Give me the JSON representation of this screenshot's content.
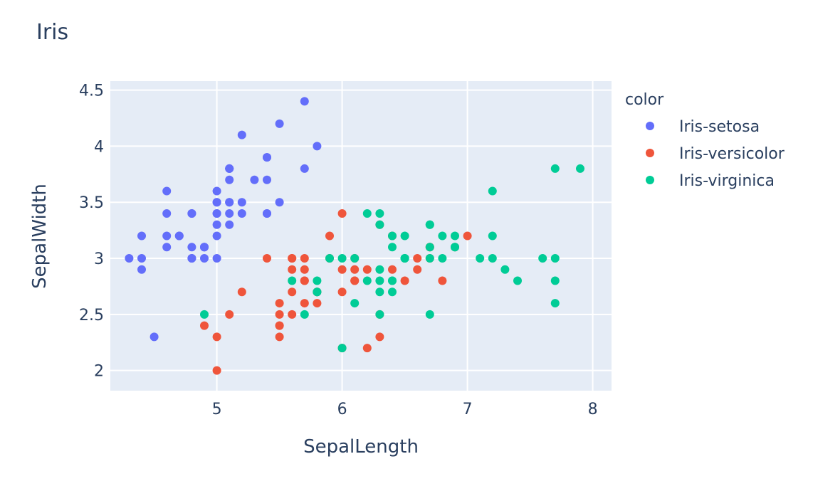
{
  "chart_data": {
    "type": "scatter",
    "title": "Iris",
    "xlabel": "SepalLength",
    "ylabel": "SepalWidth",
    "xlim": [
      4.15,
      8.15
    ],
    "ylim": [
      1.82,
      4.58
    ],
    "xticks": [
      5,
      6,
      7,
      8
    ],
    "yticks": [
      2,
      2.5,
      3,
      3.5,
      4,
      4.5
    ],
    "grid": true,
    "legend_title": "color",
    "legend_position": "right",
    "series": [
      {
        "name": "Iris-setosa",
        "color": "#636efa",
        "points": [
          [
            5.1,
            3.5
          ],
          [
            4.9,
            3.0
          ],
          [
            4.7,
            3.2
          ],
          [
            4.6,
            3.1
          ],
          [
            5.0,
            3.6
          ],
          [
            5.4,
            3.9
          ],
          [
            4.6,
            3.4
          ],
          [
            5.0,
            3.4
          ],
          [
            4.4,
            2.9
          ],
          [
            4.9,
            3.1
          ],
          [
            5.4,
            3.7
          ],
          [
            4.8,
            3.4
          ],
          [
            4.8,
            3.0
          ],
          [
            4.3,
            3.0
          ],
          [
            5.8,
            4.0
          ],
          [
            5.7,
            4.4
          ],
          [
            5.4,
            3.9
          ],
          [
            5.1,
            3.5
          ],
          [
            5.7,
            3.8
          ],
          [
            5.1,
            3.8
          ],
          [
            5.4,
            3.4
          ],
          [
            5.1,
            3.7
          ],
          [
            4.6,
            3.6
          ],
          [
            5.1,
            3.3
          ],
          [
            4.8,
            3.4
          ],
          [
            5.0,
            3.0
          ],
          [
            5.0,
            3.4
          ],
          [
            5.2,
            3.5
          ],
          [
            5.2,
            3.4
          ],
          [
            4.7,
            3.2
          ],
          [
            4.8,
            3.1
          ],
          [
            5.4,
            3.4
          ],
          [
            5.2,
            4.1
          ],
          [
            5.5,
            4.2
          ],
          [
            4.9,
            3.1
          ],
          [
            5.0,
            3.2
          ],
          [
            5.5,
            3.5
          ],
          [
            4.9,
            3.1
          ],
          [
            4.4,
            3.0
          ],
          [
            5.1,
            3.4
          ],
          [
            5.0,
            3.5
          ],
          [
            4.5,
            2.3
          ],
          [
            4.4,
            3.2
          ],
          [
            5.0,
            3.5
          ],
          [
            5.1,
            3.8
          ],
          [
            4.8,
            3.0
          ],
          [
            5.1,
            3.8
          ],
          [
            4.6,
            3.2
          ],
          [
            5.3,
            3.7
          ],
          [
            5.0,
            3.3
          ]
        ]
      },
      {
        "name": "Iris-versicolor",
        "color": "#ef553b",
        "points": [
          [
            7.0,
            3.2
          ],
          [
            6.4,
            3.2
          ],
          [
            6.9,
            3.1
          ],
          [
            5.5,
            2.3
          ],
          [
            6.5,
            2.8
          ],
          [
            5.7,
            2.8
          ],
          [
            6.3,
            3.3
          ],
          [
            4.9,
            2.4
          ],
          [
            6.6,
            2.9
          ],
          [
            5.2,
            2.7
          ],
          [
            5.0,
            2.0
          ],
          [
            5.9,
            3.0
          ],
          [
            6.0,
            2.2
          ],
          [
            6.1,
            2.9
          ],
          [
            5.6,
            2.9
          ],
          [
            6.7,
            3.1
          ],
          [
            5.6,
            3.0
          ],
          [
            5.8,
            2.7
          ],
          [
            6.2,
            2.2
          ],
          [
            5.6,
            2.5
          ],
          [
            5.9,
            3.2
          ],
          [
            6.1,
            2.8
          ],
          [
            6.3,
            2.5
          ],
          [
            6.1,
            2.8
          ],
          [
            6.4,
            2.9
          ],
          [
            6.6,
            3.0
          ],
          [
            6.8,
            2.8
          ],
          [
            6.7,
            3.0
          ],
          [
            6.0,
            2.9
          ],
          [
            5.7,
            2.6
          ],
          [
            5.5,
            2.4
          ],
          [
            5.5,
            2.4
          ],
          [
            5.8,
            2.7
          ],
          [
            6.0,
            2.7
          ],
          [
            5.4,
            3.0
          ],
          [
            6.0,
            3.4
          ],
          [
            6.7,
            3.1
          ],
          [
            6.3,
            2.3
          ],
          [
            5.6,
            3.0
          ],
          [
            5.5,
            2.5
          ],
          [
            5.5,
            2.6
          ],
          [
            6.1,
            3.0
          ],
          [
            5.8,
            2.6
          ],
          [
            5.0,
            2.3
          ],
          [
            5.6,
            2.7
          ],
          [
            5.7,
            3.0
          ],
          [
            5.7,
            2.9
          ],
          [
            6.2,
            2.9
          ],
          [
            5.1,
            2.5
          ],
          [
            5.7,
            2.8
          ]
        ]
      },
      {
        "name": "Iris-virginica",
        "color": "#00cc96",
        "points": [
          [
            6.3,
            3.3
          ],
          [
            5.8,
            2.7
          ],
          [
            7.1,
            3.0
          ],
          [
            6.3,
            2.9
          ],
          [
            6.5,
            3.0
          ],
          [
            7.6,
            3.0
          ],
          [
            4.9,
            2.5
          ],
          [
            7.3,
            2.9
          ],
          [
            6.7,
            2.5
          ],
          [
            7.2,
            3.6
          ],
          [
            6.5,
            3.2
          ],
          [
            6.4,
            2.7
          ],
          [
            6.8,
            3.0
          ],
          [
            5.7,
            2.5
          ],
          [
            5.8,
            2.8
          ],
          [
            6.4,
            3.2
          ],
          [
            6.5,
            3.0
          ],
          [
            7.7,
            3.8
          ],
          [
            7.7,
            2.6
          ],
          [
            6.0,
            2.2
          ],
          [
            6.9,
            3.2
          ],
          [
            5.6,
            2.8
          ],
          [
            7.7,
            2.8
          ],
          [
            6.3,
            2.7
          ],
          [
            6.7,
            3.3
          ],
          [
            7.2,
            3.2
          ],
          [
            6.2,
            2.8
          ],
          [
            6.1,
            3.0
          ],
          [
            6.4,
            2.8
          ],
          [
            7.2,
            3.0
          ],
          [
            7.4,
            2.8
          ],
          [
            7.9,
            3.8
          ],
          [
            6.4,
            2.8
          ],
          [
            6.3,
            2.8
          ],
          [
            6.1,
            2.6
          ],
          [
            7.7,
            3.0
          ],
          [
            6.3,
            3.4
          ],
          [
            6.4,
            3.1
          ],
          [
            6.0,
            3.0
          ],
          [
            6.9,
            3.1
          ],
          [
            6.7,
            3.1
          ],
          [
            6.9,
            3.1
          ],
          [
            5.8,
            2.7
          ],
          [
            6.8,
            3.2
          ],
          [
            6.7,
            3.3
          ],
          [
            6.7,
            3.0
          ],
          [
            6.3,
            2.5
          ],
          [
            6.5,
            3.0
          ],
          [
            6.2,
            3.4
          ],
          [
            5.9,
            3.0
          ]
        ]
      }
    ]
  }
}
